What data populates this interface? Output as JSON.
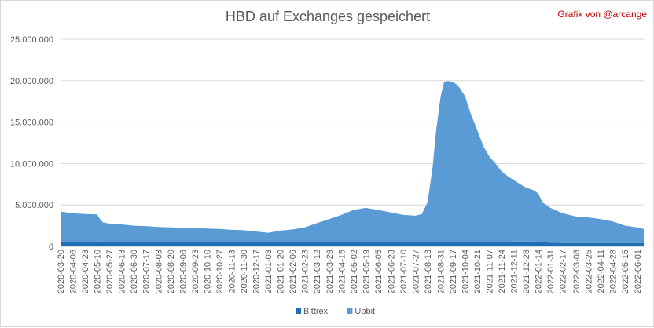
{
  "title": "HBD auf Exchanges gespeichert",
  "credit": "Grafik von @arcange",
  "chart_data": {
    "type": "area",
    "stacked": true,
    "title": "HBD auf Exchanges gespeichert",
    "xlabel": "",
    "ylabel": "",
    "ylim": [
      0,
      25000000
    ],
    "yticks": [
      0,
      5000000,
      10000000,
      15000000,
      20000000,
      25000000
    ],
    "ytick_labels": [
      "0",
      "5.000.000",
      "10.000.000",
      "15.000.000",
      "20.000.000",
      "25.000.000"
    ],
    "grid": true,
    "legend": "bottom",
    "x_tick_labels": [
      "2020-03-20",
      "2020-04-06",
      "2020-04-23",
      "2020-05-10",
      "2020-05-27",
      "2020-06-13",
      "2020-06-30",
      "2020-07-17",
      "2020-08-03",
      "2020-08-20",
      "2020-09-06",
      "2020-09-23",
      "2020-10-10",
      "2020-10-27",
      "2020-11-13",
      "2020-11-30",
      "2020-12-17",
      "2021-01-03",
      "2021-01-20",
      "2021-02-06",
      "2021-02-23",
      "2021-03-12",
      "2021-03-29",
      "2021-04-15",
      "2021-05-02",
      "2021-05-19",
      "2021-06-05",
      "2021-06-23",
      "2021-07-10",
      "2021-07-27",
      "2021-08-13",
      "2021-08-31",
      "2021-09-17",
      "2021-10-04",
      "2021-10-21",
      "2021-11-07",
      "2021-11-24",
      "2021-12-11",
      "2021-12-28",
      "2022-01-14",
      "2022-01-31",
      "2022-02-17",
      "2022-03-08",
      "2022-03-25",
      "2022-04-11",
      "2022-04-28",
      "2022-05-15",
      "2022-06-01"
    ],
    "x": [
      "2020-03-20",
      "2020-04-06",
      "2020-04-23",
      "2020-05-10",
      "2020-05-14",
      "2020-05-18",
      "2020-05-27",
      "2020-06-13",
      "2020-06-30",
      "2020-07-17",
      "2020-08-03",
      "2020-08-20",
      "2020-09-06",
      "2020-09-23",
      "2020-10-10",
      "2020-10-27",
      "2020-11-13",
      "2020-11-30",
      "2020-12-17",
      "2021-01-03",
      "2021-01-20",
      "2021-02-06",
      "2021-02-23",
      "2021-03-12",
      "2021-03-29",
      "2021-04-15",
      "2021-05-02",
      "2021-05-19",
      "2021-06-05",
      "2021-06-23",
      "2021-07-10",
      "2021-07-27",
      "2021-08-05",
      "2021-08-13",
      "2021-08-20",
      "2021-08-25",
      "2021-08-31",
      "2021-09-05",
      "2021-09-10",
      "2021-09-17",
      "2021-09-24",
      "2021-10-04",
      "2021-10-12",
      "2021-10-21",
      "2021-10-30",
      "2021-11-07",
      "2021-11-16",
      "2021-11-24",
      "2021-12-03",
      "2021-12-11",
      "2021-12-20",
      "2021-12-28",
      "2022-01-07",
      "2022-01-14",
      "2022-01-20",
      "2022-01-31",
      "2022-02-17",
      "2022-03-08",
      "2022-03-25",
      "2022-04-11",
      "2022-04-28",
      "2022-05-05",
      "2022-05-15",
      "2022-06-01",
      "2022-06-10"
    ],
    "series": [
      {
        "name": "Bittrex",
        "color": "#1f6fb5",
        "values": [
          500000,
          500000,
          500000,
          550000,
          600000,
          550000,
          500000,
          500000,
          500000,
          500000,
          500000,
          500000,
          500000,
          500000,
          500000,
          500000,
          500000,
          500000,
          500000,
          500000,
          500000,
          500000,
          500000,
          500000,
          500000,
          500000,
          500000,
          500000,
          500000,
          500000,
          500000,
          500000,
          500000,
          500000,
          500000,
          500000,
          500000,
          550000,
          550000,
          550000,
          550000,
          550000,
          550000,
          550000,
          550000,
          550000,
          550000,
          550000,
          550000,
          600000,
          600000,
          600000,
          600000,
          600000,
          500000,
          450000,
          400000,
          400000,
          400000,
          400000,
          400000,
          400000,
          400000,
          400000,
          400000
        ]
      },
      {
        "name": "Upbit",
        "color": "#5b9bd5",
        "values": [
          3700000,
          3500000,
          3400000,
          3300000,
          2700000,
          2350000,
          2250000,
          2150000,
          2000000,
          1950000,
          1850000,
          1800000,
          1750000,
          1700000,
          1650000,
          1600000,
          1500000,
          1450000,
          1300000,
          1150000,
          1400000,
          1550000,
          1800000,
          2300000,
          2800000,
          3300000,
          3900000,
          4150000,
          3900000,
          3600000,
          3300000,
          3200000,
          3400000,
          4800000,
          9000000,
          13500000,
          17500000,
          19300000,
          19400000,
          19300000,
          18900000,
          17600000,
          15500000,
          13500000,
          11500000,
          10300000,
          9400000,
          8500000,
          7900000,
          7400000,
          6900000,
          6500000,
          6200000,
          5800000,
          4800000,
          4200000,
          3600000,
          3200000,
          3100000,
          2900000,
          2600000,
          2400000,
          2100000,
          1900000,
          1700000
        ]
      }
    ]
  }
}
